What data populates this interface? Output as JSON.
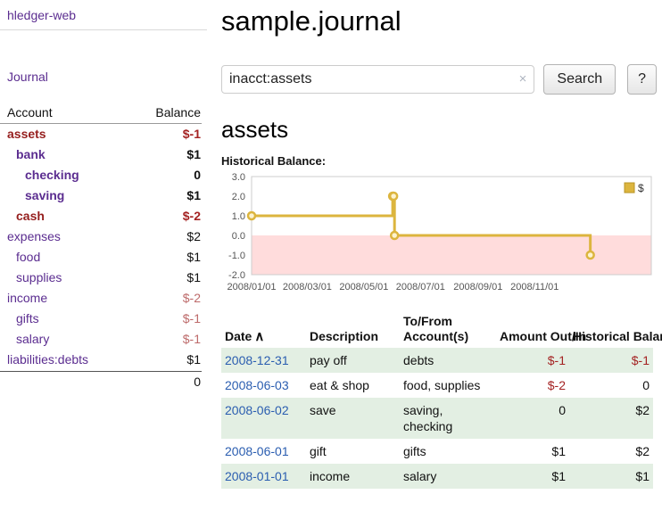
{
  "brand": "hledger-web",
  "sidebar": {
    "journal_link": "Journal",
    "accounts": {
      "header_account": "Account",
      "header_balance": "Balance",
      "rows": [
        {
          "name": "assets",
          "balance": "$-1"
        },
        {
          "name": "bank",
          "balance": "$1"
        },
        {
          "name": "checking",
          "balance": "0"
        },
        {
          "name": "saving",
          "balance": "$1"
        },
        {
          "name": "cash",
          "balance": "$-2"
        },
        {
          "name": "expenses",
          "balance": "$2"
        },
        {
          "name": "food",
          "balance": "$1"
        },
        {
          "name": "supplies",
          "balance": "$1"
        },
        {
          "name": "income",
          "balance": "$-2"
        },
        {
          "name": "gifts",
          "balance": "$-1"
        },
        {
          "name": "salary",
          "balance": "$-1"
        },
        {
          "name": "liabilities:debts",
          "balance": "$1"
        }
      ],
      "total": "0"
    }
  },
  "main": {
    "title": "sample.journal",
    "search": {
      "value": "inacct:assets",
      "clear": "×",
      "button": "Search",
      "help": "?"
    },
    "account_title": "assets",
    "chart_label": "Historical Balance:"
  },
  "chart_data": {
    "type": "line",
    "step": true,
    "title": "Historical Balance",
    "series": [
      {
        "name": "$",
        "points": [
          {
            "date": "2008-01-01",
            "value": 1
          },
          {
            "date": "2008-06-01",
            "value": 2
          },
          {
            "date": "2008-06-02",
            "value": 2
          },
          {
            "date": "2008-06-03",
            "value": 0
          },
          {
            "date": "2008-12-31",
            "value": -1
          }
        ]
      }
    ],
    "ylim": [
      -2,
      3
    ],
    "yticks": [
      3,
      2,
      1,
      0,
      -1,
      -2
    ],
    "xticks": [
      "2008/01/01",
      "2008/03/01",
      "2008/05/01",
      "2008/07/01",
      "2008/09/01",
      "2008/11/01"
    ],
    "legend": {
      "label": "$",
      "position": "top-right"
    },
    "colors": {
      "line": "#dcb53e",
      "marker_fill": "#fdf3cf",
      "below_zero": "#ffdcdc",
      "plot_border": "#cccccc",
      "tick_text": "#555555",
      "legend_border": "#b89427"
    }
  },
  "transactions": {
    "headers": {
      "date": "Date",
      "sort_icon": "∧",
      "description": "Description",
      "accounts": "To/From Account(s)",
      "amount": "Amount Out/In",
      "balance": "Historical Balance"
    },
    "rows": [
      {
        "date": "2008-12-31",
        "description": "pay off",
        "accounts": "debts",
        "amount": "$-1",
        "balance": "$-1"
      },
      {
        "date": "2008-06-03",
        "description": "eat & shop",
        "accounts": "food, supplies",
        "amount": "$-2",
        "balance": "0"
      },
      {
        "date": "2008-06-02",
        "description": "save",
        "accounts": "saving, checking",
        "amount": "0",
        "balance": "$2"
      },
      {
        "date": "2008-06-01",
        "description": "gift",
        "accounts": "gifts",
        "amount": "$1",
        "balance": "$2"
      },
      {
        "date": "2008-01-01",
        "description": "income",
        "accounts": "salary",
        "amount": "$1",
        "balance": "$1"
      }
    ]
  },
  "colors": {
    "link_purple": "#5b2d90",
    "link_blue": "#2a5db0",
    "negative_strong": "#a42222",
    "negative_soft": "#bd6a6a",
    "row_stripe_green": "#e3efe3",
    "chart_gold": "#dcb53e",
    "chart_pink": "#ffdcdc"
  }
}
